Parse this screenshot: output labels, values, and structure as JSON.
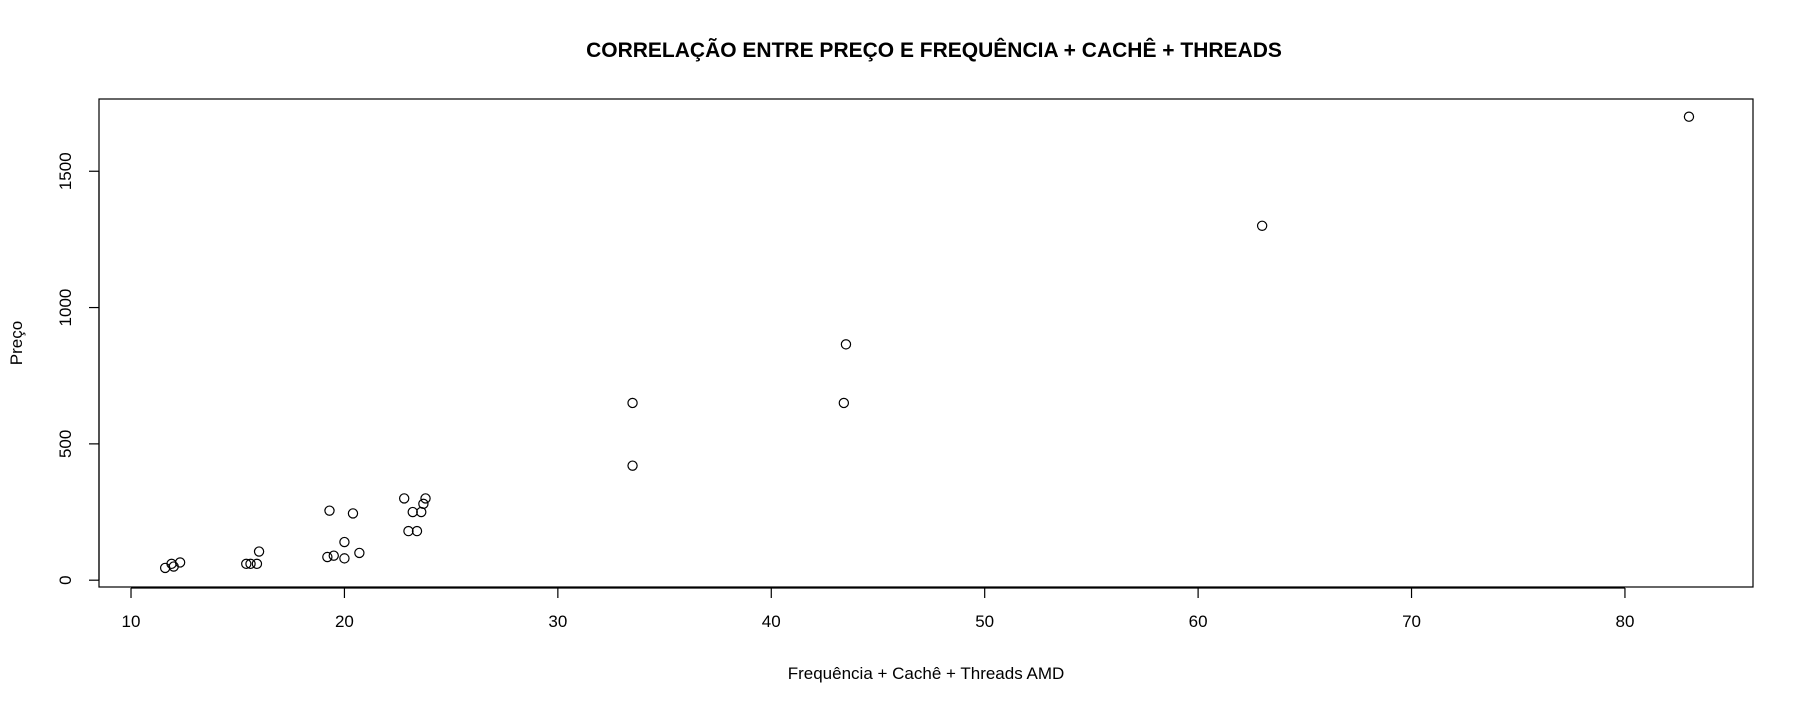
{
  "chart_data": {
    "type": "scatter",
    "title": "CORRELAÇÃO ENTRE PREÇO E  FREQUÊNCIA + CACHÊ + THREADS",
    "xlabel": "Frequência + Cachê + Threads AMD",
    "ylabel": "Preço",
    "xlim": [
      8.5,
      86
    ],
    "ylim": [
      -25,
      1765
    ],
    "x_ticks": [
      10,
      20,
      30,
      40,
      50,
      60,
      70,
      80
    ],
    "y_ticks": [
      0,
      500,
      1000,
      1500
    ],
    "grid": false,
    "legend": "none",
    "points": [
      {
        "x": 11.6,
        "y": 45
      },
      {
        "x": 11.9,
        "y": 60
      },
      {
        "x": 12.0,
        "y": 50
      },
      {
        "x": 12.3,
        "y": 65
      },
      {
        "x": 15.4,
        "y": 60
      },
      {
        "x": 15.6,
        "y": 60
      },
      {
        "x": 15.9,
        "y": 60
      },
      {
        "x": 16.0,
        "y": 105
      },
      {
        "x": 19.2,
        "y": 85
      },
      {
        "x": 19.3,
        "y": 255
      },
      {
        "x": 19.5,
        "y": 90
      },
      {
        "x": 20.0,
        "y": 140
      },
      {
        "x": 20.0,
        "y": 80
      },
      {
        "x": 20.4,
        "y": 245
      },
      {
        "x": 20.7,
        "y": 100
      },
      {
        "x": 22.8,
        "y": 300
      },
      {
        "x": 23.0,
        "y": 180
      },
      {
        "x": 23.2,
        "y": 250
      },
      {
        "x": 23.4,
        "y": 180
      },
      {
        "x": 23.6,
        "y": 250
      },
      {
        "x": 23.7,
        "y": 280
      },
      {
        "x": 23.8,
        "y": 300
      },
      {
        "x": 33.5,
        "y": 650
      },
      {
        "x": 33.5,
        "y": 420
      },
      {
        "x": 43.4,
        "y": 650
      },
      {
        "x": 43.5,
        "y": 865
      },
      {
        "x": 63.0,
        "y": 1300
      },
      {
        "x": 83.0,
        "y": 1700
      }
    ]
  }
}
